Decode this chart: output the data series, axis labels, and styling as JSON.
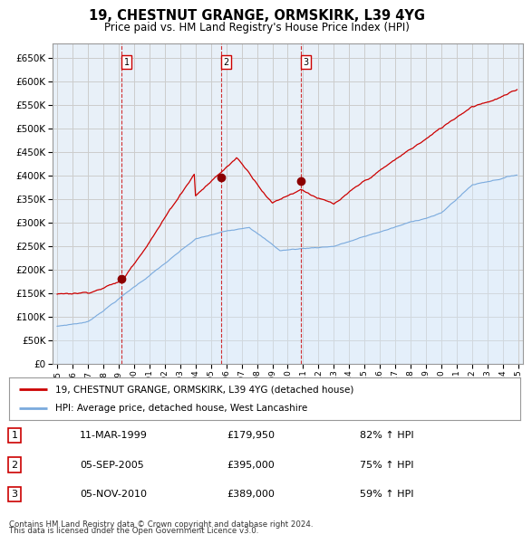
{
  "title": "19, CHESTNUT GRANGE, ORMSKIRK, L39 4YG",
  "subtitle": "Price paid vs. HM Land Registry's House Price Index (HPI)",
  "legend_line1": "19, CHESTNUT GRANGE, ORMSKIRK, L39 4YG (detached house)",
  "legend_line2": "HPI: Average price, detached house, West Lancashire",
  "footer1": "Contains HM Land Registry data © Crown copyright and database right 2024.",
  "footer2": "This data is licensed under the Open Government Licence v3.0.",
  "sales": [
    {
      "num": 1,
      "date": "11-MAR-1999",
      "price": 179950,
      "pct": "82%",
      "dir": "↑"
    },
    {
      "num": 2,
      "date": "05-SEP-2005",
      "price": 395000,
      "pct": "75%",
      "dir": "↑"
    },
    {
      "num": 3,
      "date": "05-NOV-2010",
      "price": 389000,
      "pct": "59%",
      "dir": "↑"
    }
  ],
  "sale_years": [
    1999.19,
    2005.67,
    2010.84
  ],
  "sale_prices": [
    179950,
    395000,
    389000
  ],
  "hpi_color": "#7aaadd",
  "hpi_fill_color": "#ddeeff",
  "price_color": "#cc0000",
  "vline_color": "#cc0000",
  "background_color": "#ffffff",
  "grid_color": "#cccccc",
  "ylim": [
    0,
    680000
  ],
  "yticks": [
    0,
    50000,
    100000,
    150000,
    200000,
    250000,
    300000,
    350000,
    400000,
    450000,
    500000,
    550000,
    600000,
    650000
  ],
  "xlim_start": 1994.7,
  "xlim_end": 2025.3
}
